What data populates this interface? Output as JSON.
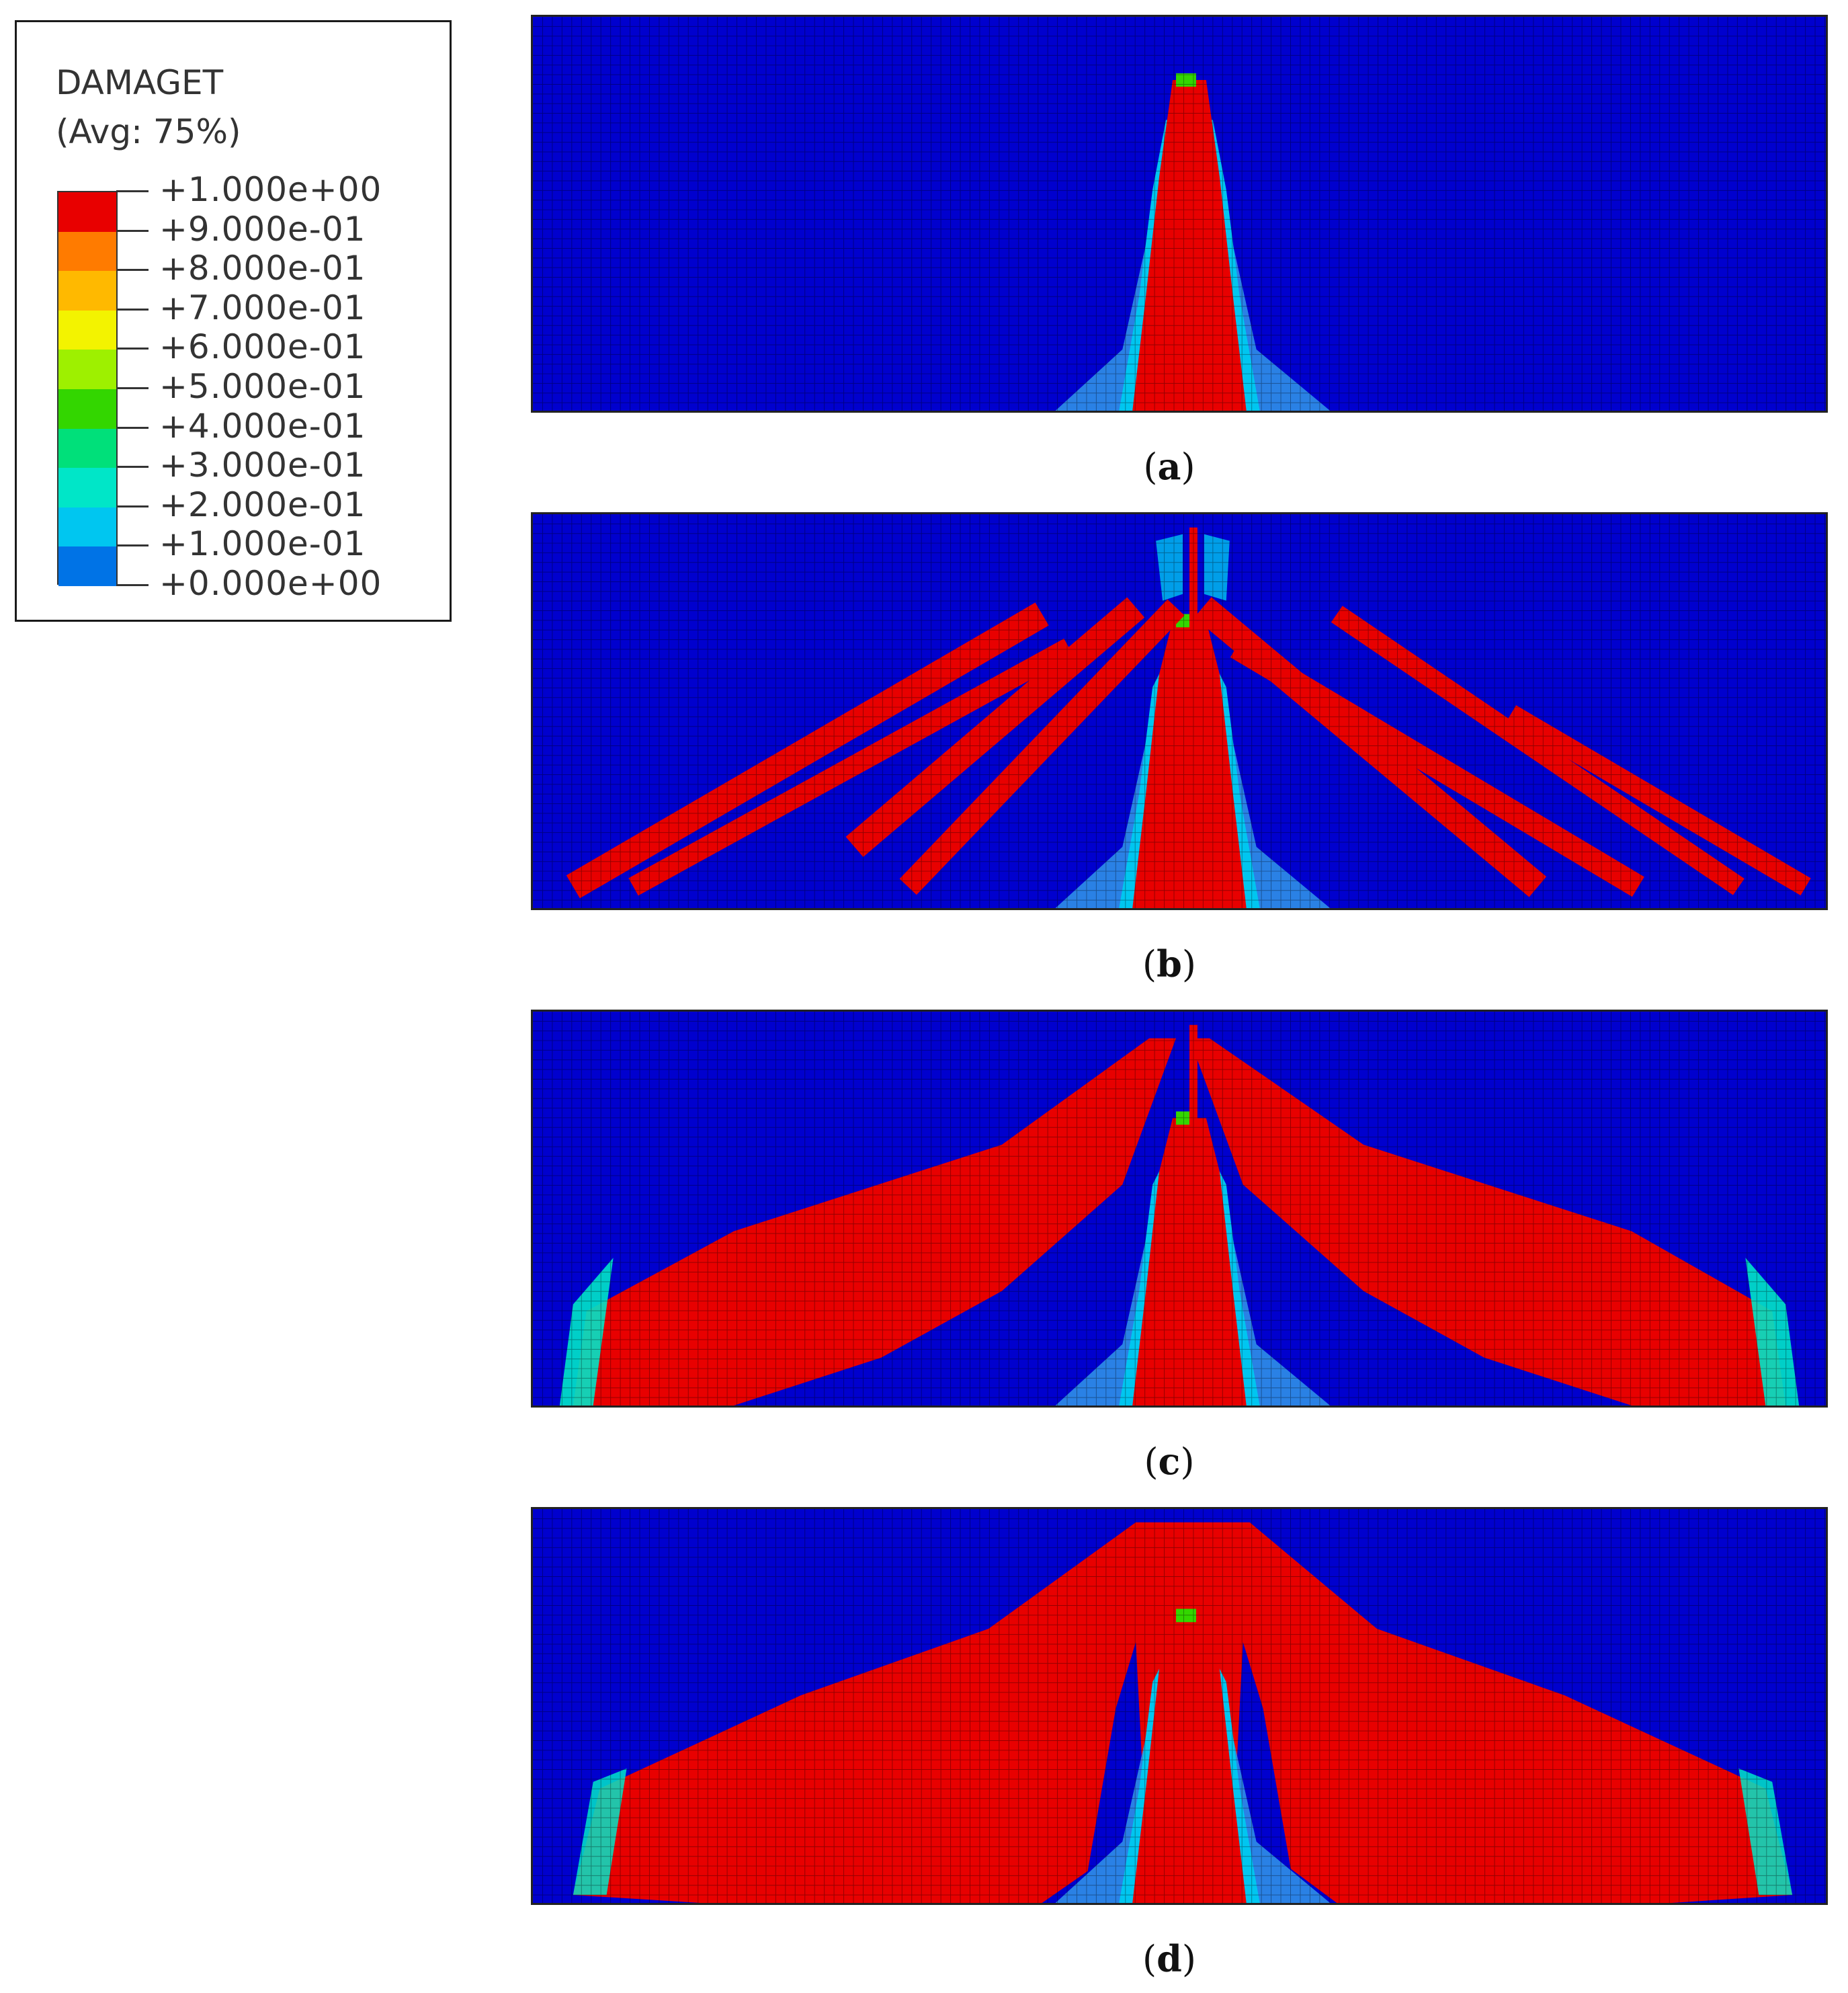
{
  "legend": {
    "variable": "DAMAGET",
    "average": "(Avg: 75%)",
    "levels": [
      {
        "label": "+1.000e+00",
        "color": "#e80000"
      },
      {
        "label": "+9.000e-01",
        "color": "#ff7b00"
      },
      {
        "label": "+8.000e-01",
        "color": "#ffb900"
      },
      {
        "label": "+7.000e-01",
        "color": "#f3f300"
      },
      {
        "label": "+6.000e-01",
        "color": "#9ef000"
      },
      {
        "label": "+5.000e-01",
        "color": "#33d600"
      },
      {
        "label": "+4.000e-01",
        "color": "#00e07a"
      },
      {
        "label": "+3.000e-01",
        "color": "#00e6c8"
      },
      {
        "label": "+2.000e-01",
        "color": "#00c6f0"
      },
      {
        "label": "+1.000e-01",
        "color": "#0073e6"
      },
      {
        "label": "+0.000e+00",
        "color": "#0000ce"
      }
    ]
  },
  "panels": [
    {
      "id": "a",
      "label_open": "(",
      "label_letter": "a",
      "label_close": ")"
    },
    {
      "id": "b",
      "label_open": "(",
      "label_letter": "b",
      "label_close": ")"
    },
    {
      "id": "c",
      "label_open": "(",
      "label_letter": "c",
      "label_close": ")"
    },
    {
      "id": "d",
      "label_open": "(",
      "label_letter": "d",
      "label_close": ")"
    }
  ],
  "colors": {
    "undamaged": "#0000ce",
    "damaged": "#e80000",
    "low_damage": "#2f8fe8",
    "mesh_line": "#000000"
  }
}
